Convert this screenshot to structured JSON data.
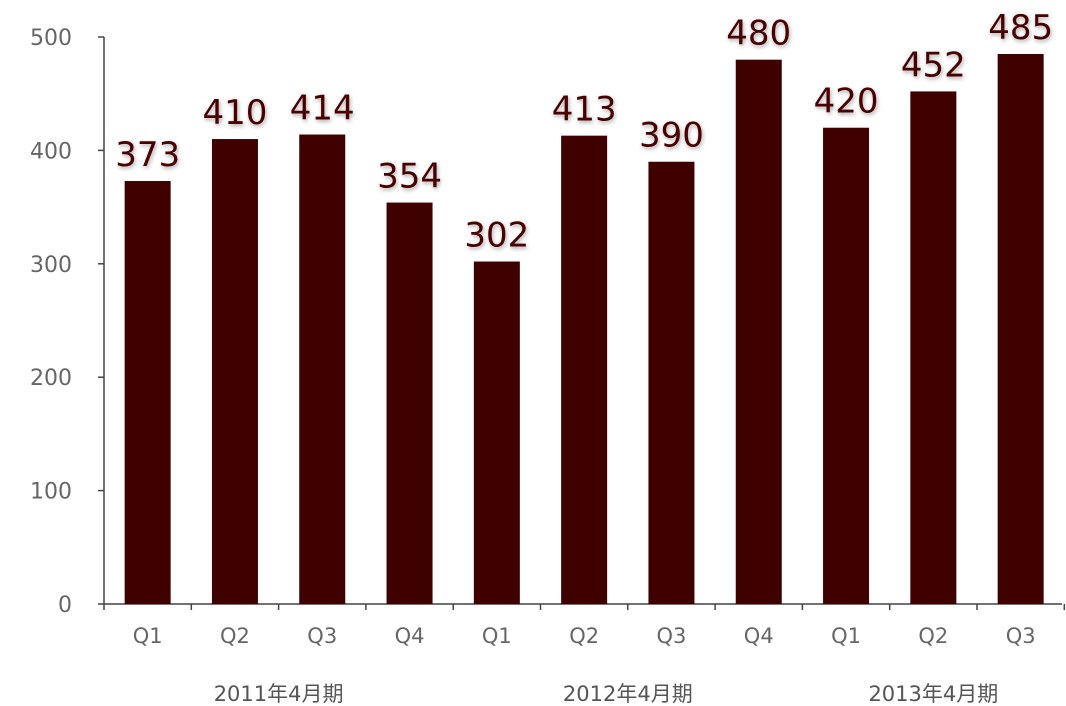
{
  "chart_data": {
    "type": "bar",
    "categories": [
      "Q1",
      "Q2",
      "Q3",
      "Q4",
      "Q1",
      "Q2",
      "Q3",
      "Q4",
      "Q1",
      "Q2",
      "Q3"
    ],
    "values": [
      373,
      410,
      414,
      354,
      302,
      413,
      390,
      480,
      420,
      452,
      485
    ],
    "data_labels": [
      "373",
      "410",
      "414",
      "354",
      "302",
      "413",
      "390",
      "480",
      "420",
      "452",
      "485"
    ],
    "groups": [
      {
        "label": "2011年4月期",
        "categories": [
          "Q1",
          "Q2",
          "Q3",
          "Q4"
        ]
      },
      {
        "label": "2012年4月期",
        "categories": [
          "Q1",
          "Q2",
          "Q3",
          "Q4"
        ]
      },
      {
        "label": "2013年4月期",
        "categories": [
          "Q1",
          "Q2",
          "Q3"
        ]
      }
    ],
    "ylim": [
      0,
      500
    ],
    "yticks": [
      "0",
      "100",
      "200",
      "300",
      "400",
      "500"
    ],
    "grid": false,
    "bar_color": "#3f0000",
    "label_color": "#4a0000",
    "axis_color": "#444444"
  }
}
